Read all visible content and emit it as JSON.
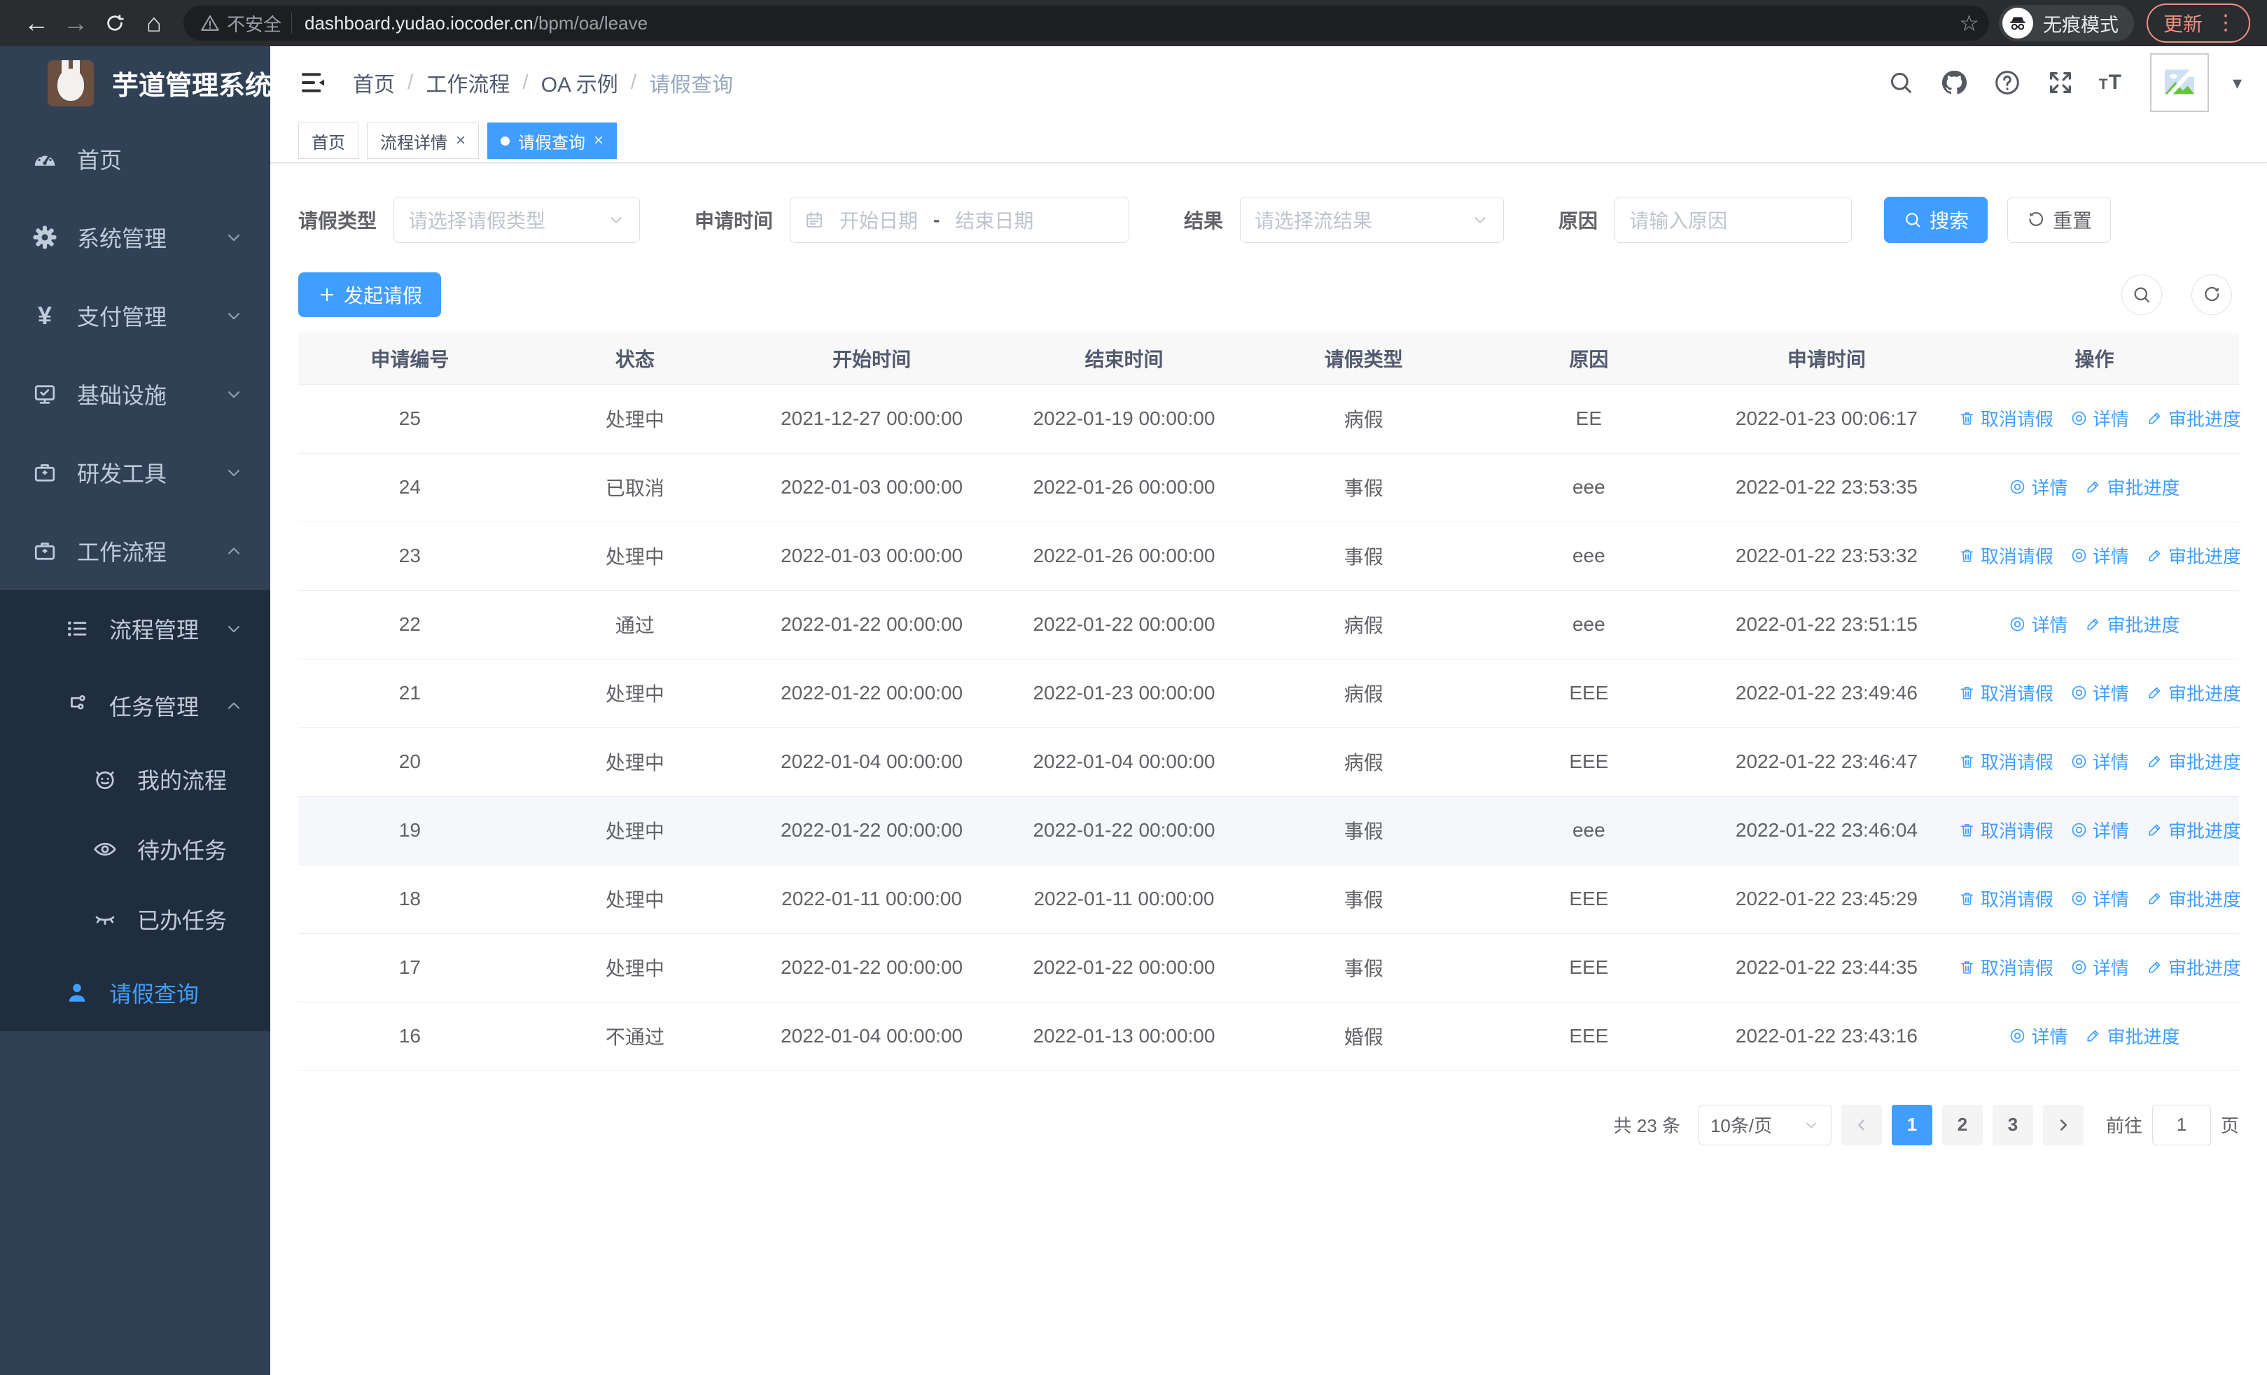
{
  "browser": {
    "not_secure": "不安全",
    "url_host": "dashboard.yudao.iocoder.cn",
    "url_path": "/bpm/oa/leave",
    "incognito_label": "无痕模式",
    "update_label": "更新"
  },
  "sidebar": {
    "title": "芋道管理系统",
    "items": [
      {
        "key": "home",
        "label": "首页",
        "icon": "dashboard-icon",
        "svg": "dashboard",
        "level": 1,
        "sub": false,
        "arrow": null,
        "active": false
      },
      {
        "key": "system",
        "label": "系统管理",
        "icon": "gear-icon",
        "svg": "gear",
        "level": 1,
        "sub": false,
        "arrow": "down",
        "active": false
      },
      {
        "key": "payment",
        "label": "支付管理",
        "icon": "yen-icon",
        "svg": "yen",
        "level": 1,
        "sub": false,
        "arrow": "down",
        "active": false
      },
      {
        "key": "infrastructure",
        "label": "基础设施",
        "icon": "monitor-icon",
        "svg": "monitor",
        "level": 1,
        "sub": false,
        "arrow": "down",
        "active": false
      },
      {
        "key": "dev-tools",
        "label": "研发工具",
        "icon": "toolbox-icon",
        "svg": "toolbox",
        "level": 1,
        "sub": false,
        "arrow": "down",
        "active": false
      },
      {
        "key": "workflow",
        "label": "工作流程",
        "icon": "toolbox-icon",
        "svg": "toolbox",
        "level": 1,
        "sub": false,
        "arrow": "up",
        "active": false
      },
      {
        "key": "process-mgmt",
        "label": "流程管理",
        "icon": "list-icon",
        "svg": "list",
        "level": 2,
        "sub": true,
        "arrow": "down",
        "active": false
      },
      {
        "key": "task-mgmt",
        "label": "任务管理",
        "icon": "flow-icon",
        "svg": "flow",
        "level": 2,
        "sub": true,
        "arrow": "up",
        "active": false
      },
      {
        "key": "my-process",
        "label": "我的流程",
        "icon": "face-icon",
        "svg": "face",
        "level": 3,
        "sub": true,
        "arrow": null,
        "active": false
      },
      {
        "key": "todo-tasks",
        "label": "待办任务",
        "icon": "eye-icon",
        "svg": "eye",
        "level": 3,
        "sub": true,
        "arrow": null,
        "active": false
      },
      {
        "key": "done-tasks",
        "label": "已办任务",
        "icon": "eye-closed-icon",
        "svg": "eyeclosed",
        "level": 3,
        "sub": true,
        "arrow": null,
        "active": false
      },
      {
        "key": "leave-query",
        "label": "请假查询",
        "icon": "user-icon",
        "svg": "user",
        "level": 2,
        "sub": true,
        "arrow": null,
        "active": true
      }
    ]
  },
  "header": {
    "breadcrumb": [
      "首页",
      "工作流程",
      "OA 示例",
      "请假查询"
    ]
  },
  "tabs": [
    {
      "label": "首页",
      "closable": false,
      "active": false
    },
    {
      "label": "流程详情",
      "closable": true,
      "active": false
    },
    {
      "label": "请假查询",
      "closable": true,
      "active": true
    }
  ],
  "filters": {
    "leave_type_label": "请假类型",
    "leave_type_placeholder": "请选择请假类型",
    "apply_time_label": "申请时间",
    "date_start_placeholder": "开始日期",
    "date_separator": "-",
    "date_end_placeholder": "结束日期",
    "result_label": "结果",
    "result_placeholder": "请选择流结果",
    "reason_label": "原因",
    "reason_placeholder": "请输入原因",
    "search_label": "搜索",
    "reset_label": "重置"
  },
  "toolbar": {
    "create_label": "发起请假"
  },
  "table": {
    "headers": [
      "申请编号",
      "状态",
      "开始时间",
      "结束时间",
      "请假类型",
      "原因",
      "申请时间",
      "操作"
    ],
    "ops": {
      "cancel": "取消请假",
      "detail": "详情",
      "progress": "审批进度"
    },
    "rows": [
      {
        "id": "25",
        "status": "处理中",
        "start": "2021-12-27 00:00:00",
        "end": "2022-01-19 00:00:00",
        "type": "病假",
        "reason": "EE",
        "applied": "2022-01-23 00:06:17",
        "actions": [
          "cancel",
          "detail",
          "progress"
        ],
        "highlighted": false
      },
      {
        "id": "24",
        "status": "已取消",
        "start": "2022-01-03 00:00:00",
        "end": "2022-01-26 00:00:00",
        "type": "事假",
        "reason": "eee",
        "applied": "2022-01-22 23:53:35",
        "actions": [
          "detail",
          "progress"
        ],
        "highlighted": false
      },
      {
        "id": "23",
        "status": "处理中",
        "start": "2022-01-03 00:00:00",
        "end": "2022-01-26 00:00:00",
        "type": "事假",
        "reason": "eee",
        "applied": "2022-01-22 23:53:32",
        "actions": [
          "cancel",
          "detail",
          "progress"
        ],
        "highlighted": false
      },
      {
        "id": "22",
        "status": "通过",
        "start": "2022-01-22 00:00:00",
        "end": "2022-01-22 00:00:00",
        "type": "病假",
        "reason": "eee",
        "applied": "2022-01-22 23:51:15",
        "actions": [
          "detail",
          "progress"
        ],
        "highlighted": false
      },
      {
        "id": "21",
        "status": "处理中",
        "start": "2022-01-22 00:00:00",
        "end": "2022-01-23 00:00:00",
        "type": "病假",
        "reason": "EEE",
        "applied": "2022-01-22 23:49:46",
        "actions": [
          "cancel",
          "detail",
          "progress"
        ],
        "highlighted": false
      },
      {
        "id": "20",
        "status": "处理中",
        "start": "2022-01-04 00:00:00",
        "end": "2022-01-04 00:00:00",
        "type": "病假",
        "reason": "EEE",
        "applied": "2022-01-22 23:46:47",
        "actions": [
          "cancel",
          "detail",
          "progress"
        ],
        "highlighted": false
      },
      {
        "id": "19",
        "status": "处理中",
        "start": "2022-01-22 00:00:00",
        "end": "2022-01-22 00:00:00",
        "type": "事假",
        "reason": "eee",
        "applied": "2022-01-22 23:46:04",
        "actions": [
          "cancel",
          "detail",
          "progress"
        ],
        "highlighted": true
      },
      {
        "id": "18",
        "status": "处理中",
        "start": "2022-01-11 00:00:00",
        "end": "2022-01-11 00:00:00",
        "type": "事假",
        "reason": "EEE",
        "applied": "2022-01-22 23:45:29",
        "actions": [
          "cancel",
          "detail",
          "progress"
        ],
        "highlighted": false
      },
      {
        "id": "17",
        "status": "处理中",
        "start": "2022-01-22 00:00:00",
        "end": "2022-01-22 00:00:00",
        "type": "事假",
        "reason": "EEE",
        "applied": "2022-01-22 23:44:35",
        "actions": [
          "cancel",
          "detail",
          "progress"
        ],
        "highlighted": false
      },
      {
        "id": "16",
        "status": "不通过",
        "start": "2022-01-04 00:00:00",
        "end": "2022-01-13 00:00:00",
        "type": "婚假",
        "reason": "EEE",
        "applied": "2022-01-22 23:43:16",
        "actions": [
          "detail",
          "progress"
        ],
        "highlighted": false
      }
    ]
  },
  "pagination": {
    "total_label": "共 23 条",
    "page_size_label": "10条/页",
    "pages": [
      "1",
      "2",
      "3"
    ],
    "active_page": "1",
    "goto_label": "前往",
    "goto_value": "1",
    "unit_label": "页"
  },
  "colors": {
    "accent": "#409EFF",
    "sidebar_bg": "#304156",
    "submenu_bg": "#1f2d3d",
    "update_accent": "#ee8e86"
  }
}
